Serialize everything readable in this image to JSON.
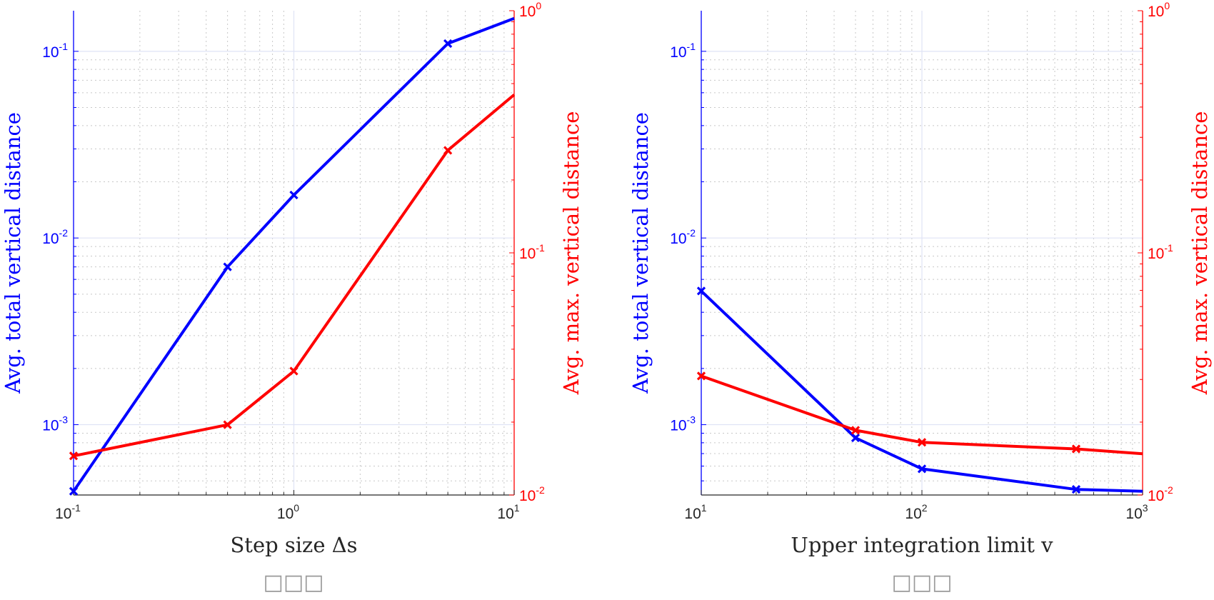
{
  "colors": {
    "left_axis": "#0000ff",
    "right_axis": "#ff0000",
    "series_total": "#0000ff",
    "series_max": "#ff0000",
    "grid_major": "#dfe3f5",
    "grid_minor": "#c8c8c8",
    "x_axis": "#262626"
  },
  "chart_data": [
    {
      "type": "line",
      "xscale": "log",
      "xlabel": "Step size Δs",
      "ylabel_left": "Avg.  total vertical distance",
      "ylabel_right": "Avg.  max.  vertical distance",
      "xlim": [
        0.1,
        10
      ],
      "ylim_left": [
        0.00042,
        0.165
      ],
      "ylim_right": [
        0.01,
        1
      ],
      "yscale_left": "log",
      "yscale_right": "log",
      "grid": true,
      "caption": "□□□",
      "x_ticks": [
        {
          "mant": "10",
          "exp": "-1",
          "v": 0.1
        },
        {
          "mant": "10",
          "exp": "0",
          "v": 1
        },
        {
          "mant": "10",
          "exp": "1",
          "v": 10
        }
      ],
      "y_left_ticks": [
        {
          "mant": "10",
          "exp": "-3",
          "v": 0.001
        },
        {
          "mant": "10",
          "exp": "-2",
          "v": 0.01
        },
        {
          "mant": "10",
          "exp": "-1",
          "v": 0.1
        }
      ],
      "y_right_ticks": [
        {
          "mant": "10",
          "exp": "-2",
          "v": 0.01
        },
        {
          "mant": "10",
          "exp": "-1",
          "v": 0.1
        },
        {
          "mant": "10",
          "exp": "0",
          "v": 1
        }
      ],
      "series": [
        {
          "axis": "left",
          "color": "#0000ff",
          "x": [
            0.1,
            0.5,
            1,
            5,
            10
          ],
          "y": [
            0.00044,
            0.007,
            0.017,
            0.11,
            0.15
          ]
        },
        {
          "axis": "right",
          "color": "#ff0000",
          "x": [
            0.1,
            0.5,
            1,
            5,
            10
          ],
          "y": [
            0.0145,
            0.0195,
            0.0325,
            0.265,
            0.45
          ]
        }
      ]
    },
    {
      "type": "line",
      "xscale": "log",
      "xlabel": "Upper integration limit v",
      "ylabel_left": "Avg.  total vertical distance",
      "ylabel_right": "Avg.  max.  vertical distance",
      "xlim": [
        10,
        1000
      ],
      "ylim_left": [
        0.00042,
        0.165
      ],
      "ylim_right": [
        0.01,
        1
      ],
      "yscale_left": "log",
      "yscale_right": "log",
      "grid": true,
      "caption": "□□□",
      "x_ticks": [
        {
          "mant": "10",
          "exp": "1",
          "v": 10
        },
        {
          "mant": "10",
          "exp": "2",
          "v": 100
        },
        {
          "mant": "10",
          "exp": "3",
          "v": 1000
        }
      ],
      "y_left_ticks": [
        {
          "mant": "10",
          "exp": "-3",
          "v": 0.001
        },
        {
          "mant": "10",
          "exp": "-2",
          "v": 0.01
        },
        {
          "mant": "10",
          "exp": "-1",
          "v": 0.1
        }
      ],
      "y_right_ticks": [
        {
          "mant": "10",
          "exp": "-2",
          "v": 0.01
        },
        {
          "mant": "10",
          "exp": "-1",
          "v": 0.1
        },
        {
          "mant": "10",
          "exp": "0",
          "v": 1
        }
      ],
      "series": [
        {
          "axis": "left",
          "color": "#0000ff",
          "x": [
            10,
            50,
            100,
            500,
            1000
          ],
          "y": [
            0.0052,
            0.00085,
            0.00058,
            0.00045,
            0.00044
          ]
        },
        {
          "axis": "right",
          "color": "#ff0000",
          "x": [
            10,
            50,
            100,
            500,
            1000
          ],
          "y": [
            0.031,
            0.0185,
            0.0165,
            0.0155,
            0.0148
          ]
        }
      ]
    }
  ]
}
